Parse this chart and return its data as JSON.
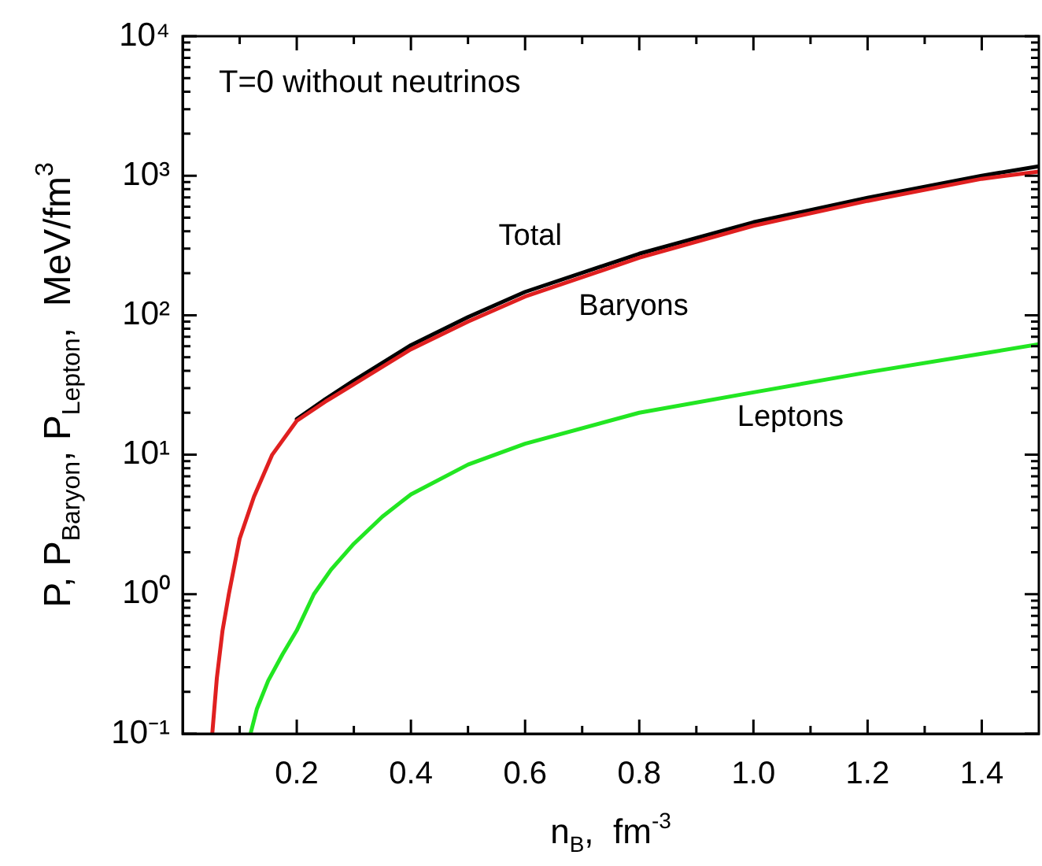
{
  "chart_data": {
    "type": "line",
    "xlabel": "n$_{B}$,  fm$^{-3}$",
    "ylabel": "P, P$_{Baryon}$, P$_{Lepton}$,  MeV/fm$^{3}$",
    "annotations": [
      "T=0 without neutrinos"
    ],
    "log": "y",
    "grid": false,
    "legend": false,
    "marker": "none",
    "line_style": "solid",
    "xlim": [
      0,
      1.5
    ],
    "ylim": [
      0.1,
      10000
    ],
    "xticks": [
      {
        "value": 0.1,
        "label": null
      },
      0.2,
      {
        "value": 0.3,
        "label": null
      },
      0.4,
      {
        "value": 0.5,
        "label": null
      },
      0.6,
      {
        "value": 0.7,
        "label": null
      },
      0.8,
      {
        "value": 0.9,
        "label": null
      },
      {
        "value": 1,
        "label": "1.0"
      },
      {
        "value": 1.1,
        "label": null
      },
      1.2,
      {
        "value": 1.3,
        "label": null
      },
      1.4
    ],
    "yticks": [
      {
        "value": 0.1,
        "label": "10⁻¹"
      },
      {
        "value": 0.2,
        "label": null
      },
      {
        "value": 0.3,
        "label": null
      },
      {
        "value": 0.4,
        "label": null
      },
      {
        "value": 0.5,
        "label": null
      },
      {
        "value": 0.6,
        "label": null
      },
      {
        "value": 0.7,
        "label": null
      },
      {
        "value": 0.8,
        "label": null
      },
      {
        "value": 0.9,
        "label": null
      },
      {
        "value": 1,
        "label": "10⁰"
      },
      {
        "value": 2,
        "label": null
      },
      {
        "value": 3,
        "label": null
      },
      {
        "value": 4,
        "label": null
      },
      {
        "value": 5,
        "label": null
      },
      {
        "value": 6,
        "label": null
      },
      {
        "value": 7,
        "label": null
      },
      {
        "value": 8,
        "label": null
      },
      {
        "value": 9,
        "label": null
      },
      {
        "value": 10,
        "label": "10¹"
      },
      {
        "value": 20,
        "label": null
      },
      {
        "value": 30,
        "label": null
      },
      {
        "value": 40,
        "label": null
      },
      {
        "value": 50,
        "label": null
      },
      {
        "value": 60,
        "label": null
      },
      {
        "value": 70,
        "label": null
      },
      {
        "value": 80,
        "label": null
      },
      {
        "value": 90,
        "label": null
      },
      {
        "value": 100,
        "label": "10²"
      },
      {
        "value": 200,
        "label": null
      },
      {
        "value": 300,
        "label": null
      },
      {
        "value": 400,
        "label": null
      },
      {
        "value": 500,
        "label": null
      },
      {
        "value": 600,
        "label": null
      },
      {
        "value": 700,
        "label": null
      },
      {
        "value": 800,
        "label": null
      },
      {
        "value": 900,
        "label": null
      },
      {
        "value": 1000,
        "label": "10³"
      },
      {
        "value": 2000,
        "label": null
      },
      {
        "value": 3000,
        "label": null
      },
      {
        "value": 4000,
        "label": null
      },
      {
        "value": 5000,
        "label": null
      },
      {
        "value": 6000,
        "label": null
      },
      {
        "value": 7000,
        "label": null
      },
      {
        "value": 8000,
        "label": null
      },
      {
        "value": 9000,
        "label": null
      },
      {
        "value": 10000,
        "label": "10⁴"
      }
    ],
    "series": [
      {
        "name": "Total",
        "color": "#000000",
        "x": [
          0.2,
          0.25,
          0.3,
          0.4,
          0.5,
          0.6,
          0.8,
          1.0,
          1.2,
          1.4,
          1.5
        ],
        "values": [
          18,
          25,
          34,
          61,
          97,
          147,
          276,
          464,
          695,
          1000,
          1170
        ]
      },
      {
        "name": "Baryons",
        "color": "#e02020",
        "x": [
          0.052,
          0.06,
          0.07,
          0.081,
          0.1,
          0.125,
          0.157,
          0.2,
          0.25,
          0.3,
          0.4,
          0.5,
          0.6,
          0.8,
          1.0,
          1.2,
          1.4,
          1.5
        ],
        "values": [
          0.1,
          0.25,
          0.55,
          1,
          2.5,
          5,
          10,
          17.5,
          24,
          32,
          57,
          90,
          136,
          258,
          438,
          660,
          950,
          1070
        ]
      },
      {
        "name": "Leptons",
        "color": "#22e622",
        "x": [
          0.119,
          0.13,
          0.15,
          0.175,
          0.2,
          0.23,
          0.26,
          0.3,
          0.35,
          0.4,
          0.5,
          0.6,
          0.8,
          1.0,
          1.2,
          1.4,
          1.5
        ],
        "values": [
          0.1,
          0.15,
          0.24,
          0.37,
          0.55,
          1,
          1.5,
          2.3,
          3.6,
          5.2,
          8.5,
          12,
          20,
          28,
          39,
          53,
          62
        ]
      }
    ]
  }
}
